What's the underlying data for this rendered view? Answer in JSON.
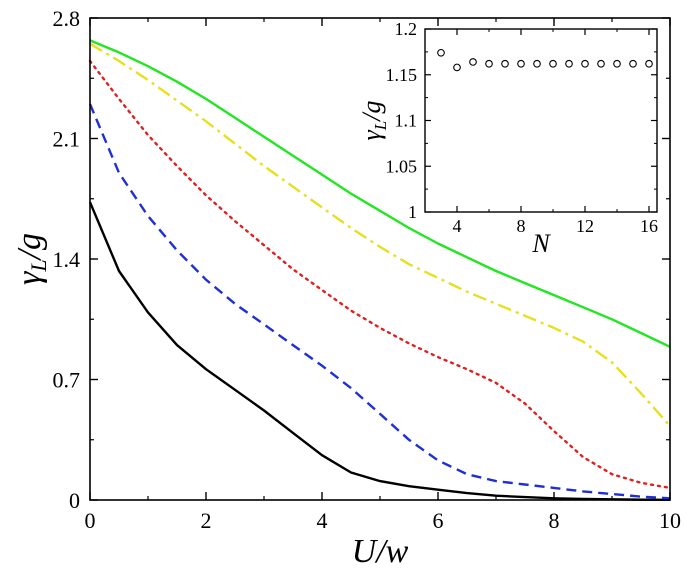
{
  "chart_data": [
    {
      "type": "line",
      "xlabel": "U/w",
      "ylabel": "γL/g",
      "xlim": [
        0,
        10
      ],
      "ylim": [
        0,
        2.8
      ],
      "xticks": [
        "0",
        "2",
        "4",
        "6",
        "8",
        "10"
      ],
      "yticks": [
        "0",
        "0.7",
        "1.4",
        "2.1",
        "2.8"
      ],
      "grid": false,
      "series": [
        {
          "color": "#000000",
          "style": "solid",
          "x": [
            0,
            0.5,
            1,
            1.5,
            2,
            2.5,
            3,
            3.5,
            4,
            4.5,
            5,
            5.5,
            6,
            6.5,
            7,
            7.5,
            8,
            8.5,
            9,
            9.5,
            10
          ],
          "y": [
            1.73,
            1.33,
            1.09,
            0.9,
            0.76,
            0.64,
            0.52,
            0.39,
            0.26,
            0.16,
            0.11,
            0.08,
            0.06,
            0.04,
            0.025,
            0.017,
            0.01,
            0.006,
            0.004,
            0.002,
            0.001
          ]
        },
        {
          "color": "#1f2fd6",
          "style": "dashed",
          "x": [
            0,
            0.5,
            1,
            1.5,
            2,
            2.5,
            3,
            3.5,
            4,
            4.5,
            5,
            5.5,
            6,
            6.5,
            7,
            7.5,
            8,
            8.5,
            9,
            9.5,
            10
          ],
          "y": [
            2.3,
            1.9,
            1.65,
            1.45,
            1.28,
            1.14,
            1.02,
            0.9,
            0.78,
            0.65,
            0.5,
            0.35,
            0.23,
            0.15,
            0.11,
            0.09,
            0.07,
            0.05,
            0.035,
            0.02,
            0.01
          ]
        },
        {
          "color": "#e02020",
          "style": "dotted",
          "x": [
            0,
            0.5,
            1,
            1.5,
            2,
            2.5,
            3,
            3.5,
            4,
            4.5,
            5,
            5.5,
            6,
            6.5,
            7,
            7.5,
            8,
            8.5,
            9,
            9.5,
            10
          ],
          "y": [
            2.55,
            2.33,
            2.12,
            1.94,
            1.77,
            1.62,
            1.48,
            1.34,
            1.22,
            1.1,
            1.0,
            0.91,
            0.83,
            0.76,
            0.68,
            0.56,
            0.4,
            0.25,
            0.15,
            0.1,
            0.07
          ]
        },
        {
          "color": "#e6e020",
          "style": "dashdot",
          "x": [
            0,
            0.5,
            1,
            1.5,
            2,
            2.5,
            3,
            3.5,
            4,
            4.5,
            5,
            5.5,
            6,
            6.5,
            7,
            7.5,
            8,
            8.5,
            9,
            9.5,
            10
          ],
          "y": [
            2.65,
            2.55,
            2.44,
            2.32,
            2.2,
            2.07,
            1.94,
            1.82,
            1.7,
            1.58,
            1.47,
            1.37,
            1.29,
            1.21,
            1.14,
            1.07,
            1.0,
            0.92,
            0.8,
            0.62,
            0.43
          ]
        },
        {
          "color": "#22e622",
          "style": "solid",
          "x": [
            0,
            0.5,
            1,
            1.5,
            2,
            2.5,
            3,
            3.5,
            4,
            4.5,
            5,
            5.5,
            6,
            6.5,
            7,
            7.5,
            8,
            8.5,
            9,
            9.5,
            10
          ],
          "y": [
            2.67,
            2.6,
            2.52,
            2.43,
            2.33,
            2.22,
            2.11,
            2.0,
            1.89,
            1.78,
            1.68,
            1.58,
            1.49,
            1.41,
            1.33,
            1.26,
            1.19,
            1.12,
            1.05,
            0.97,
            0.89
          ]
        }
      ]
    },
    {
      "type": "scatter",
      "xlabel": "N",
      "ylabel": "γL/g",
      "xlim": [
        2,
        16.5
      ],
      "ylim": [
        1.0,
        1.2
      ],
      "xticks": [
        "4",
        "8",
        "12",
        "16"
      ],
      "yticks": [
        "1",
        "1.05",
        "1.1",
        "1.15",
        "1.2"
      ],
      "marker": "open-circle",
      "series": [
        {
          "color": "#000000",
          "x": [
            3,
            4,
            5,
            6,
            7,
            8,
            9,
            10,
            11,
            12,
            13,
            14,
            15,
            16
          ],
          "y": [
            1.174,
            1.158,
            1.164,
            1.162,
            1.162,
            1.162,
            1.162,
            1.162,
            1.162,
            1.162,
            1.162,
            1.162,
            1.162,
            1.162
          ]
        }
      ]
    }
  ]
}
